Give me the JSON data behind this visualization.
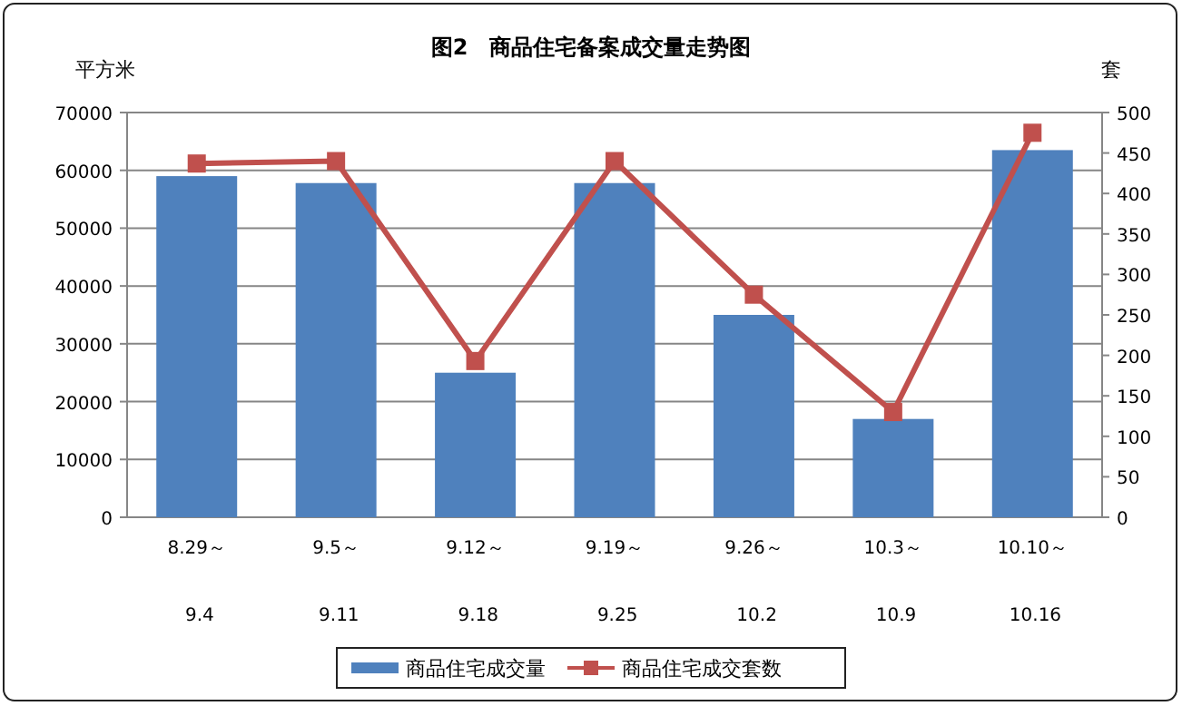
{
  "chart_data": {
    "type": "bar",
    "title": "图2　商品住宅备案成交量走势图",
    "ylabel": "平方米",
    "y2label": "套",
    "categories": [
      "8.29～ 9.4",
      "9.5～ 9.11",
      "9.12～ 9.18",
      "9.19～ 9.25",
      "9.26～ 10.2",
      "10.3～ 10.9",
      "10.10～ 10.16"
    ],
    "series": [
      {
        "name": "商品住宅成交量",
        "color": "#4f81bd",
        "values": [
          59000,
          57800,
          25000,
          57800,
          35000,
          17000,
          63500
        ]
      },
      {
        "name": "商品住宅成交套数",
        "type": "line",
        "axis": "y2",
        "color": "#c0504d",
        "marker": "square",
        "values": [
          437,
          440,
          193,
          440,
          275,
          130,
          475
        ]
      }
    ],
    "ylim": [
      0,
      70000
    ],
    "yticks": [
      0,
      10000,
      20000,
      30000,
      40000,
      50000,
      60000,
      70000
    ],
    "y2lim": [
      0,
      500
    ],
    "y2ticks": [
      0,
      50,
      100,
      150,
      200,
      250,
      300,
      350,
      400,
      450,
      500
    ],
    "grid": "y",
    "legend": "bottom"
  }
}
